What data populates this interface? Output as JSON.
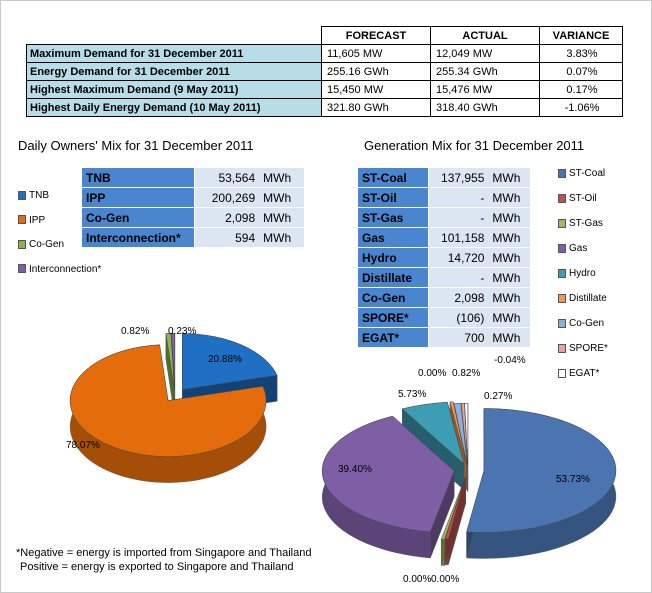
{
  "summary": {
    "headers": [
      "FORECAST",
      "ACTUAL",
      "VARIANCE"
    ],
    "rows": [
      {
        "label": "Maximum Demand for 31 December 2011",
        "forecast": "11,605 MW",
        "actual": "12,049 MW",
        "variance": "3.83%"
      },
      {
        "label": "Energy Demand for 31 December 2011",
        "forecast": "255.16 GWh",
        "actual": "255.34 GWh",
        "variance": "0.07%"
      },
      {
        "label": "Highest Maximum Demand (9 May 2011)",
        "forecast": "15,450 MW",
        "actual": "15,476 MW",
        "variance": "0.17%"
      },
      {
        "label": "Highest Daily Energy Demand (10 May 2011)",
        "forecast": "321.80 GWh",
        "actual": "318.40 GWh",
        "variance": "-1.06%"
      }
    ]
  },
  "owners_mix": {
    "title": "Daily Owners' Mix for 31 December 2011",
    "unit": "MWh",
    "rows": [
      {
        "name": "TNB",
        "value": "53,564"
      },
      {
        "name": "IPP",
        "value": "200,269"
      },
      {
        "name": "Co-Gen",
        "value": "2,098"
      },
      {
        "name": "Interconnection*",
        "value": "594"
      }
    ],
    "legend": [
      {
        "name": "TNB",
        "color": "#1f6fc4"
      },
      {
        "name": "IPP",
        "color": "#e46c0a"
      },
      {
        "name": "Co-Gen",
        "color": "#8db34a"
      },
      {
        "name": "Interconnection*",
        "color": "#7b5ea7"
      }
    ]
  },
  "generation_mix": {
    "title": "Generation Mix for 31 December 2011",
    "unit": "MWh",
    "rows": [
      {
        "name": "ST-Coal",
        "value": "137,955"
      },
      {
        "name": "ST-Oil",
        "value": "-"
      },
      {
        "name": "ST-Gas",
        "value": "-"
      },
      {
        "name": "Gas",
        "value": "101,158"
      },
      {
        "name": "Hydro",
        "value": "14,720"
      },
      {
        "name": "Distillate",
        "value": "-"
      },
      {
        "name": "Co-Gen",
        "value": "2,098"
      },
      {
        "name": "SPORE*",
        "value": "(106)"
      },
      {
        "name": "EGAT*",
        "value": "700"
      }
    ],
    "legend": [
      {
        "name": "ST-Coal",
        "color": "#4a75b0"
      },
      {
        "name": "ST-Oil",
        "color": "#c0504d"
      },
      {
        "name": "ST-Gas",
        "color": "#9bbb59"
      },
      {
        "name": "Gas",
        "color": "#7e5fa6"
      },
      {
        "name": "Hydro",
        "color": "#3d9db5"
      },
      {
        "name": "Distillate",
        "color": "#f79646"
      },
      {
        "name": "Co-Gen",
        "color": "#8fb0dc"
      },
      {
        "name": "SPORE*",
        "color": "#e2a4a2"
      },
      {
        "name": "EGAT*",
        "color": "#ffffff"
      }
    ]
  },
  "chart_data": [
    {
      "type": "pie",
      "title": "Daily Owners' Mix for 31 December 2011",
      "categories": [
        "TNB",
        "IPP",
        "Co-Gen",
        "Interconnection*"
      ],
      "values": [
        20.88,
        78.07,
        0.82,
        0.23
      ],
      "labels": [
        "20.88%",
        "78.07%",
        "0.82%",
        "0.23%"
      ],
      "colors": [
        "#1f6fc4",
        "#e46c0a",
        "#8db34a",
        "#7b5ea7"
      ],
      "legend": "left"
    },
    {
      "type": "pie",
      "title": "Generation Mix for 31 December 2011",
      "categories": [
        "ST-Coal",
        "ST-Oil",
        "ST-Gas",
        "Gas",
        "Hydro",
        "Distillate",
        "Co-Gen",
        "SPORE*",
        "EGAT*"
      ],
      "values": [
        53.73,
        0.0,
        0.0,
        39.4,
        5.73,
        0.0,
        0.82,
        -0.04,
        0.27
      ],
      "labels": [
        "53.73%",
        "0.00%",
        "0.00%",
        "39.40%",
        "5.73%",
        "0.00%",
        "0.82%",
        "-0.04%",
        "0.27%"
      ],
      "colors": [
        "#4a75b0",
        "#c0504d",
        "#9bbb59",
        "#7e5fa6",
        "#3d9db5",
        "#f79646",
        "#8fb0dc",
        "#e2a4a2",
        "#ffffff"
      ],
      "legend": "right"
    }
  ],
  "footnote": {
    "line1": "*Negative = energy is imported from Singapore and Thailand",
    "line2": "Positive = energy is exported to Singapore and Thailand"
  }
}
